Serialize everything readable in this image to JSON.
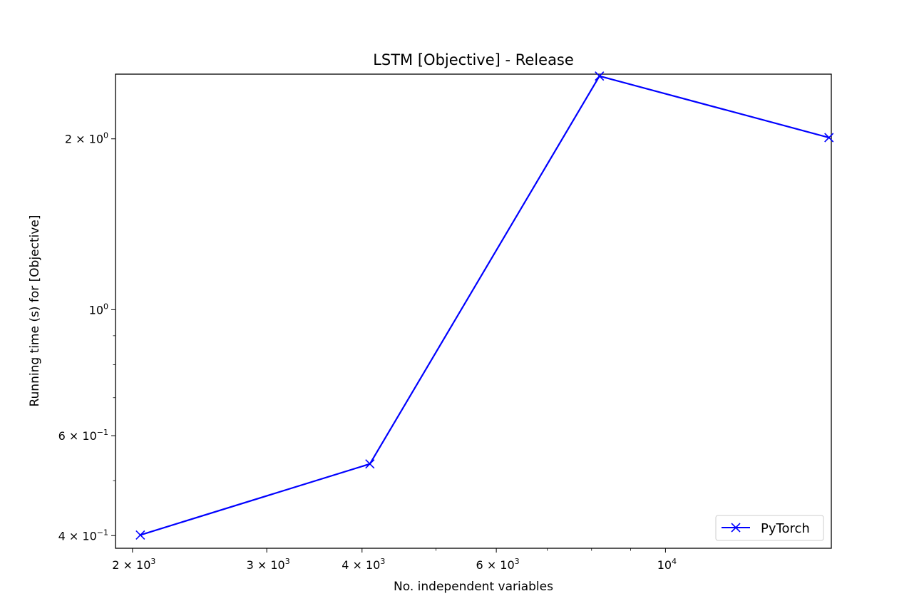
{
  "chart_data": {
    "type": "line",
    "title": "LSTM [Objective] - Release",
    "xlabel": "No. independent variables",
    "ylabel": "Running time (s) for [Objective]",
    "xscale": "log",
    "yscale": "log",
    "xlim": [
      1900,
      16500
    ],
    "ylim": [
      0.38,
      2.6
    ],
    "grid": false,
    "legend_position": "lower right",
    "colors": {
      "series": "#0000ff",
      "axes": "#000000",
      "background": "#ffffff"
    },
    "x_ticks": [
      {
        "value": 2000,
        "base": "2 × 10",
        "exp": "3"
      },
      {
        "value": 3000,
        "base": "3 × 10",
        "exp": "3"
      },
      {
        "value": 4000,
        "base": "4 × 10",
        "exp": "3"
      },
      {
        "value": 6000,
        "base": "6 × 10",
        "exp": "3"
      },
      {
        "value": 10000,
        "base": "10",
        "exp": "4"
      }
    ],
    "x_minor_ticks": [
      5000,
      7000,
      8000,
      9000
    ],
    "y_ticks": [
      {
        "value": 0.4,
        "base": "4 × 10",
        "exp": "−1"
      },
      {
        "value": 0.6,
        "base": "6 × 10",
        "exp": "−1"
      },
      {
        "value": 1.0,
        "base": "10",
        "exp": "0"
      },
      {
        "value": 2.0,
        "base": "2 × 10",
        "exp": "0"
      }
    ],
    "y_minor_ticks": [
      0.5,
      0.7,
      0.8,
      0.9
    ],
    "series": [
      {
        "name": "PyTorch",
        "marker": "x",
        "x": [
          2048,
          4096,
          8192,
          16384
        ],
        "y": [
          0.401,
          0.535,
          2.58,
          2.01
        ]
      }
    ]
  }
}
